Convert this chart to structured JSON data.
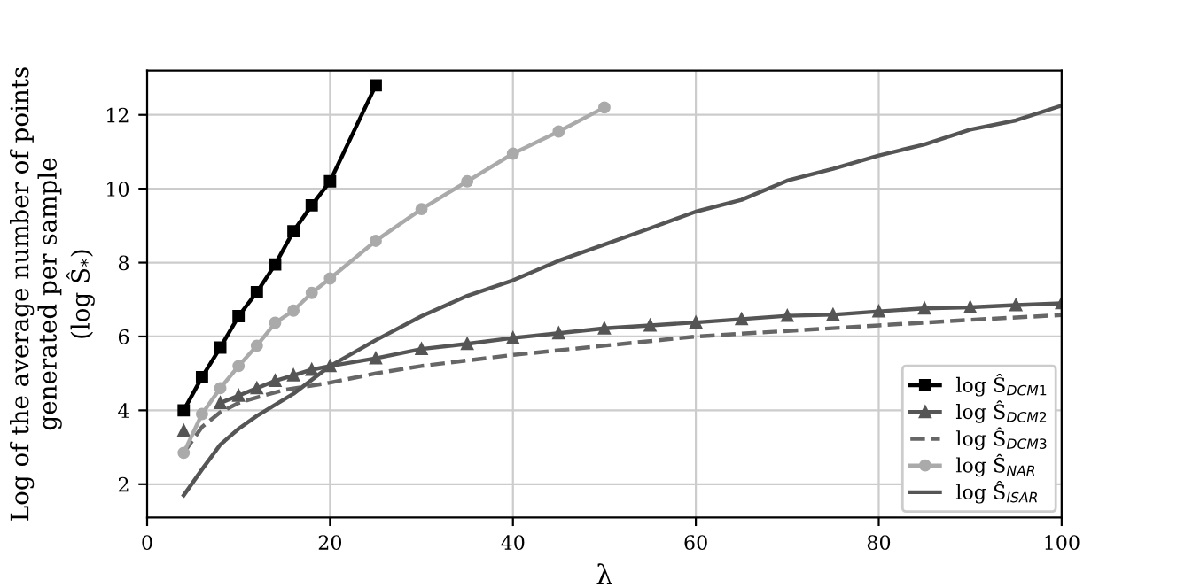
{
  "chart_data": {
    "type": "line",
    "xlabel": "λ",
    "ylabel": "Log of the average number of points\ngenerated per sample\n(log Ŝ$_{*}$)",
    "xlim": [
      0,
      100
    ],
    "xticks": [
      0,
      20,
      40,
      60,
      80,
      100
    ],
    "ylim": [
      1.1,
      13.2
    ],
    "yticks": [
      2,
      4,
      6,
      8,
      10,
      12
    ],
    "grid": true,
    "legend": "bottom right",
    "series": [
      {
        "name": "log Ŝ$_{DCM1}$",
        "color": "#000000",
        "marker": "square",
        "line_style": "solid",
        "x": [
          4,
          6,
          8,
          10,
          12,
          14,
          16,
          18,
          20,
          25
        ],
        "values": [
          4.0,
          4.9,
          5.7,
          6.55,
          7.2,
          7.95,
          8.85,
          9.55,
          10.2,
          12.8
        ]
      },
      {
        "name": "log Ŝ$_{DCM2}$",
        "color": "#555555",
        "marker": "triangle",
        "line_style": "solid",
        "x": [
          4,
          6,
          8,
          10,
          12,
          14,
          16,
          18,
          20,
          25,
          30,
          35,
          40,
          45,
          50,
          55,
          60,
          65,
          70,
          75,
          80,
          85,
          90,
          95,
          100
        ],
        "values": [
          3.45,
          null,
          4.2,
          4.4,
          4.6,
          4.8,
          4.95,
          5.1,
          5.2,
          5.41,
          5.66,
          5.8,
          5.96,
          6.09,
          6.22,
          6.3,
          6.38,
          6.47,
          6.56,
          6.59,
          6.68,
          6.76,
          6.79,
          6.85,
          6.9
        ]
      },
      {
        "name": "log Ŝ$_{DCM3}$",
        "color": "#666666",
        "marker": "none",
        "line_style": "dashed",
        "x": [
          4,
          6,
          8,
          10,
          12,
          15,
          20,
          25,
          30,
          40,
          50,
          60,
          70,
          80,
          90,
          100
        ],
        "values": [
          2.85,
          3.55,
          3.95,
          4.2,
          4.35,
          4.55,
          4.75,
          5.0,
          5.2,
          5.5,
          5.75,
          6.0,
          6.15,
          6.3,
          6.45,
          6.58
        ]
      },
      {
        "name": "log Ŝ$_{NAR}$",
        "color": "#aaaaaa",
        "marker": "circle",
        "line_style": "solid",
        "x": [
          4,
          6,
          8,
          10,
          12,
          14,
          16,
          18,
          20,
          25,
          30,
          35,
          40,
          45,
          50
        ],
        "values": [
          2.85,
          3.9,
          4.6,
          5.2,
          5.75,
          6.37,
          6.7,
          7.18,
          7.57,
          8.59,
          9.45,
          10.2,
          10.95,
          11.55,
          12.2
        ]
      },
      {
        "name": "log Ŝ$_{ISAR}$",
        "color": "#555555",
        "marker": "none",
        "line_style": "solid",
        "x": [
          4,
          6,
          8,
          10,
          12,
          14,
          16,
          20,
          25,
          30,
          35,
          40,
          45,
          50,
          55,
          60,
          65,
          70,
          75,
          80,
          85,
          90,
          95,
          100
        ],
        "values": [
          1.7,
          2.4,
          3.07,
          3.5,
          3.85,
          4.15,
          4.45,
          5.2,
          5.9,
          6.55,
          7.1,
          7.52,
          8.05,
          8.49,
          8.93,
          9.38,
          9.7,
          10.22,
          10.54,
          10.9,
          11.2,
          11.6,
          11.85,
          12.25
        ]
      }
    ]
  }
}
